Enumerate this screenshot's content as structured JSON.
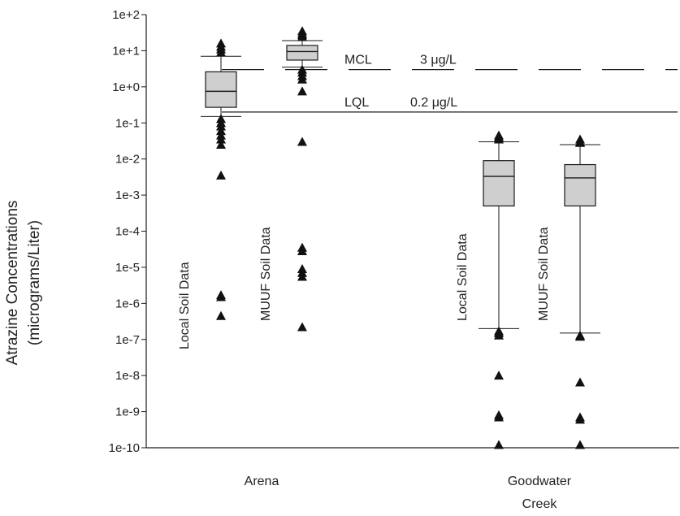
{
  "chart_data": {
    "type": "box",
    "ylabel": "Atrazine Concentrations",
    "ylabel_units": "(micrograms/Liter)",
    "y_scale": "log",
    "ylim": [
      1e-10,
      100
    ],
    "y_ticks": [
      "1e+2",
      "1e+1",
      "1e+0",
      "1e-1",
      "1e-2",
      "1e-3",
      "1e-4",
      "1e-5",
      "1e-6",
      "1e-7",
      "1e-8",
      "1e-9",
      "1e-10"
    ],
    "categories": [
      "Arena",
      "Goodwater Creek"
    ],
    "category_lines": [
      [
        "Arena"
      ],
      [
        "Goodwater",
        "Creek"
      ]
    ],
    "series": [
      {
        "name": "Local Soil Data",
        "category": "Arena",
        "slot": 0,
        "q1": 0.27,
        "median": 0.75,
        "q3": 2.6,
        "whisker_low": 0.15,
        "whisker_high": 7,
        "outliers": [
          16,
          13,
          11,
          9,
          0.13,
          0.1,
          0.08,
          0.06,
          0.045,
          0.035,
          0.025,
          0.0035,
          1.7e-06,
          1.5e-06,
          4.5e-07
        ]
      },
      {
        "name": "MUUF Soil Data",
        "category": "Arena",
        "slot": 1,
        "q1": 5.5,
        "median": 9.5,
        "q3": 14,
        "whisker_low": 3.5,
        "whisker_high": 19,
        "outliers": [
          35,
          30,
          27,
          24,
          3,
          2.5,
          2,
          1.6,
          0.75,
          0.03,
          3.5e-05,
          2.8e-05,
          9e-06,
          7e-06,
          5.5e-06,
          2.2e-07
        ]
      },
      {
        "name": "Local Soil Data",
        "category": "Goodwater Creek",
        "slot": 0,
        "q1": 0.0005,
        "median": 0.0033,
        "q3": 0.009,
        "whisker_low": 2e-07,
        "whisker_high": 0.03,
        "outliers": [
          0.045,
          0.04,
          0.035,
          1.7e-07,
          1.5e-07,
          1.3e-07,
          1e-08,
          8e-10,
          7e-10,
          1.2e-10
        ]
      },
      {
        "name": "MUUF Soil Data",
        "category": "Goodwater Creek",
        "slot": 1,
        "q1": 0.0005,
        "median": 0.003,
        "q3": 0.007,
        "whisker_low": 1.5e-07,
        "whisker_high": 0.025,
        "outliers": [
          0.035,
          0.03,
          0.028,
          1.3e-07,
          1.2e-07,
          6.5e-09,
          7e-10,
          6e-10,
          1.2e-10
        ]
      }
    ],
    "reference_lines": [
      {
        "name": "MCL",
        "value_label": "3 μg/L",
        "value": 3,
        "style": "dashed"
      },
      {
        "name": "LQL",
        "value_label": "0.2 μg/L",
        "value": 0.2,
        "style": "solid"
      }
    ],
    "grid": false,
    "legend": "none"
  }
}
